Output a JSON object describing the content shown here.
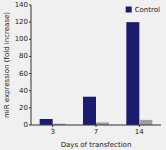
{
  "chart_data": {
    "type": "bar",
    "xlabel": "Days of transfection",
    "ylabel": "miR expression (fold increase)",
    "categories": [
      "3",
      "7",
      "14"
    ],
    "series": [
      {
        "name": "Control",
        "color": "#1c1c6e",
        "values": [
          7,
          33,
          120
        ]
      },
      {
        "color": "#a0a0a0",
        "values": [
          1.5,
          3,
          6
        ]
      }
    ],
    "ylim": [
      0,
      140
    ],
    "yticks": [
      0,
      20,
      40,
      60,
      80,
      100,
      120,
      140
    ],
    "legend": "upper right",
    "grid": false
  }
}
